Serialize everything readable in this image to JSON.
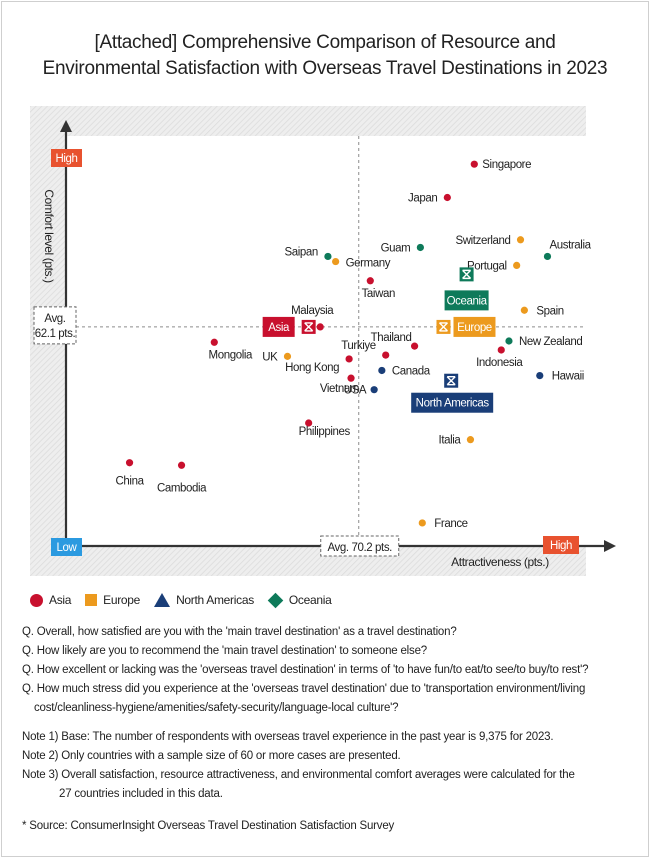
{
  "title_line1": "[Attached] Comprehensive Comparison of Resource and",
  "title_line2": "Environmental Satisfaction with Overseas Travel Destinations in 2023",
  "colors": {
    "asia": "#c8102e",
    "europe": "#ec9a1e",
    "north_americas": "#1a3e78",
    "oceania": "#0e7a5a"
  },
  "chart_data": {
    "type": "scatter",
    "xlabel": "Attractiveness (pts.)",
    "ylabel": "Comfort level (pts.)",
    "x_low_label": "Low",
    "x_high_label": "High",
    "y_high_label": "High",
    "avg_x_label": "Avg. 70.2 pts.",
    "avg_y_label_line1": "Avg.",
    "avg_y_label_line2": "62.1 pts.",
    "avg_x": 70.2,
    "avg_y": 62.1,
    "xlim": [
      55,
      82
    ],
    "ylim": [
      45,
      77
    ],
    "grid": false,
    "points": [
      {
        "name": "Singapore",
        "region": "asia",
        "x": 76.2,
        "y": 74.8
      },
      {
        "name": "Japan",
        "region": "asia",
        "x": 74.8,
        "y": 72.2
      },
      {
        "name": "Switzerland",
        "region": "europe",
        "x": 78.6,
        "y": 68.9
      },
      {
        "name": "Australia",
        "region": "oceania",
        "x": 80.0,
        "y": 67.6
      },
      {
        "name": "Guam",
        "region": "oceania",
        "x": 73.4,
        "y": 68.3
      },
      {
        "name": "Saipan",
        "region": "oceania",
        "x": 68.6,
        "y": 67.6
      },
      {
        "name": "Germany",
        "region": "europe",
        "x": 69.0,
        "y": 67.2
      },
      {
        "name": "Portugal",
        "region": "europe",
        "x": 78.4,
        "y": 66.9
      },
      {
        "name": "Taiwan",
        "region": "asia",
        "x": 70.8,
        "y": 65.7
      },
      {
        "name": "Spain",
        "region": "europe",
        "x": 78.8,
        "y": 63.4
      },
      {
        "name": "Malaysia",
        "region": "asia",
        "x": 68.2,
        "y": 62.1
      },
      {
        "name": "Thailand",
        "region": "asia",
        "x": 73.1,
        "y": 60.6
      },
      {
        "name": "New Zealand",
        "region": "oceania",
        "x": 78.0,
        "y": 61.0
      },
      {
        "name": "Indonesia",
        "region": "asia",
        "x": 77.6,
        "y": 60.3
      },
      {
        "name": "Hawaii",
        "region": "north_americas",
        "x": 79.6,
        "y": 58.3
      },
      {
        "name": "Mongolia",
        "region": "asia",
        "x": 62.7,
        "y": 60.9
      },
      {
        "name": "UK",
        "region": "europe",
        "x": 66.5,
        "y": 59.8
      },
      {
        "name": "Turkiye",
        "region": "asia",
        "x": 71.6,
        "y": 59.9
      },
      {
        "name": "Hong Kong",
        "region": "asia",
        "x": 69.7,
        "y": 59.6
      },
      {
        "name": "Canada",
        "region": "north_americas",
        "x": 71.4,
        "y": 58.7
      },
      {
        "name": "Vietnam",
        "region": "asia",
        "x": 69.8,
        "y": 58.1
      },
      {
        "name": "USA",
        "region": "north_americas",
        "x": 71.0,
        "y": 57.2
      },
      {
        "name": "Philippines",
        "region": "asia",
        "x": 67.6,
        "y": 54.6
      },
      {
        "name": "Italia",
        "region": "europe",
        "x": 76.0,
        "y": 53.3
      },
      {
        "name": "China",
        "region": "asia",
        "x": 58.3,
        "y": 51.5
      },
      {
        "name": "Cambodia",
        "region": "asia",
        "x": 61.0,
        "y": 51.3
      },
      {
        "name": "France",
        "region": "europe",
        "x": 73.5,
        "y": 46.8
      }
    ],
    "regions": [
      {
        "name": "Asia",
        "key": "asia",
        "x": 67.6,
        "y": 62.1
      },
      {
        "name": "Europe",
        "key": "europe",
        "x": 74.6,
        "y": 62.1
      },
      {
        "name": "North Americas",
        "key": "north_americas",
        "x": 75.0,
        "y": 57.9
      },
      {
        "name": "Oceania",
        "key": "oceania",
        "x": 75.8,
        "y": 66.2
      }
    ]
  },
  "legend": {
    "asia": "Asia",
    "europe": "Europe",
    "north_americas": "North Americas",
    "oceania": "Oceania"
  },
  "questions": [
    "Q. Overall, how satisfied are you with the 'main travel destination' as a travel destination?",
    "Q. How likely are you to recommend the 'main travel destination' to someone else?",
    "Q. How excellent or lacking was the 'overseas travel destination' in terms of 'to have fun/to eat/to see/to buy/to rest'?",
    "Q. How much stress did you experience at the 'overseas travel destination' due to 'transportation environment/living cost/cleanliness-hygiene/amenities/safety-security/language-local culture'?"
  ],
  "notes": {
    "note1": "Note 1) Base: The number of respondents with overseas travel experience in the past year is 9,375 for 2023.",
    "note2": "Note 2) Only countries with a sample size of 60 or more cases are presented.",
    "note3": "Note 3) Overall satisfaction, resource attractiveness, and environmental comfort averages were calculated for the",
    "note3_cont": "27 countries included in this data."
  },
  "source": "* Source: ConsumerInsight Overseas Travel Destination Satisfaction Survey"
}
